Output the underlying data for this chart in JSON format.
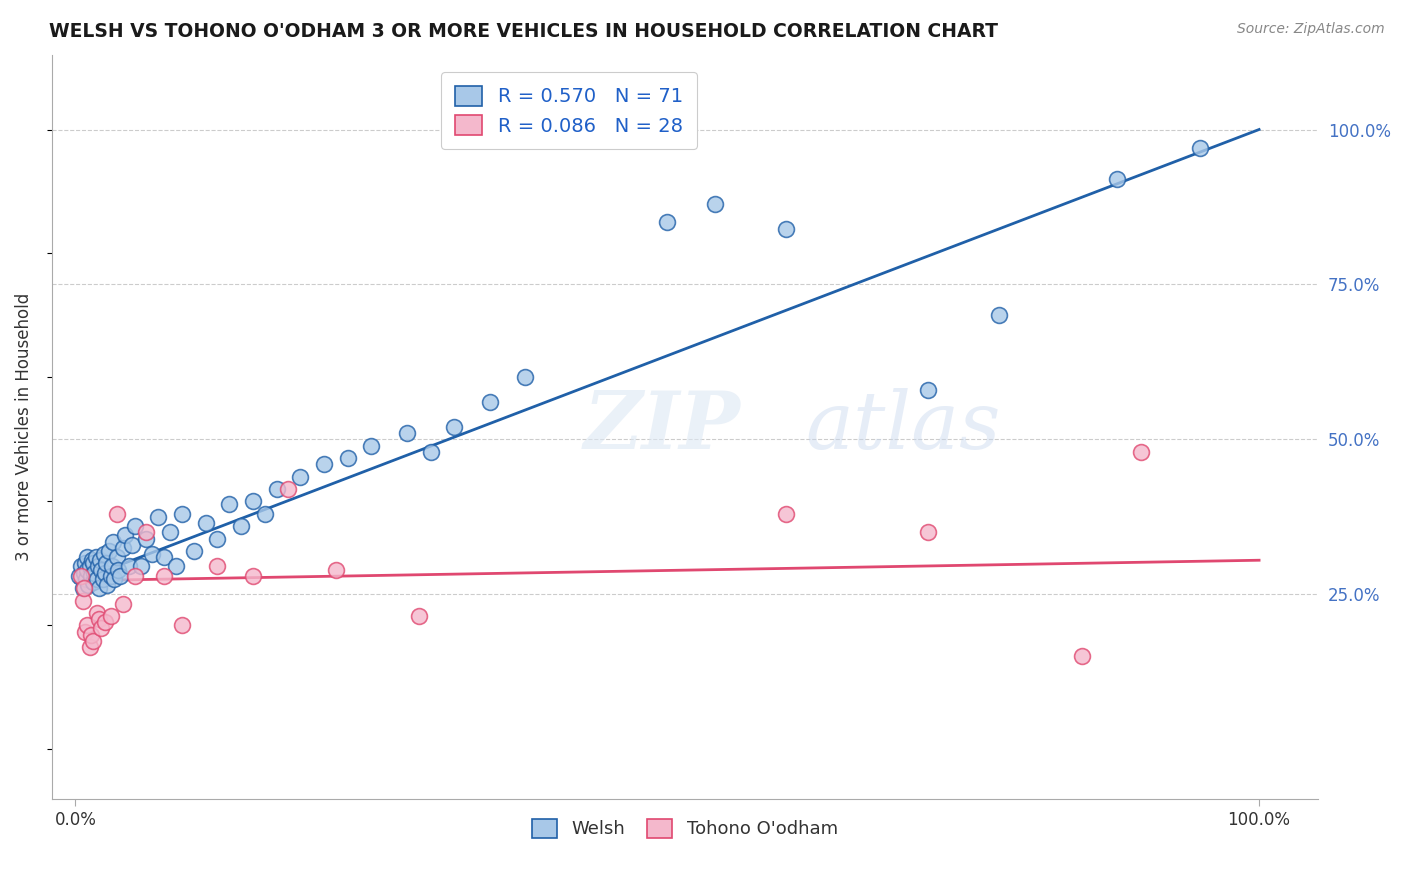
{
  "title": "WELSH VS TOHONO O'ODHAM 3 OR MORE VEHICLES IN HOUSEHOLD CORRELATION CHART",
  "source": "Source: ZipAtlas.com",
  "ylabel": "3 or more Vehicles in Household",
  "welsh_R": 0.57,
  "welsh_N": 71,
  "tohono_R": 0.086,
  "tohono_N": 28,
  "legend_label1": "Welsh",
  "legend_label2": "Tohono O'odham",
  "color_welsh": "#a8c8e8",
  "color_tohono": "#f4b8cc",
  "line_color_welsh": "#2060a8",
  "line_color_tohono": "#e04870",
  "welsh_line_x0": 0.0,
  "welsh_line_y0": 0.27,
  "welsh_line_x1": 1.0,
  "welsh_line_y1": 1.0,
  "tohono_line_x0": 0.0,
  "tohono_line_y0": 0.272,
  "tohono_line_x1": 1.0,
  "tohono_line_y1": 0.305,
  "xlim": [
    -0.02,
    1.05
  ],
  "ylim": [
    -0.08,
    1.12
  ],
  "yticks": [
    0.25,
    0.5,
    0.75,
    1.0
  ],
  "ytick_labels": [
    "25.0%",
    "50.0%",
    "75.0%",
    "100.0%"
  ],
  "welsh_x": [
    0.003,
    0.005,
    0.006,
    0.007,
    0.008,
    0.009,
    0.01,
    0.01,
    0.011,
    0.012,
    0.013,
    0.014,
    0.015,
    0.015,
    0.016,
    0.017,
    0.018,
    0.019,
    0.02,
    0.021,
    0.022,
    0.023,
    0.024,
    0.025,
    0.026,
    0.027,
    0.028,
    0.03,
    0.031,
    0.032,
    0.033,
    0.035,
    0.036,
    0.038,
    0.04,
    0.042,
    0.045,
    0.048,
    0.05,
    0.055,
    0.06,
    0.065,
    0.07,
    0.075,
    0.08,
    0.085,
    0.09,
    0.1,
    0.11,
    0.12,
    0.13,
    0.14,
    0.15,
    0.16,
    0.17,
    0.19,
    0.21,
    0.23,
    0.25,
    0.28,
    0.3,
    0.32,
    0.35,
    0.38,
    0.5,
    0.54,
    0.6,
    0.72,
    0.78,
    0.88,
    0.95
  ],
  "welsh_y": [
    0.28,
    0.295,
    0.26,
    0.285,
    0.3,
    0.275,
    0.29,
    0.31,
    0.265,
    0.295,
    0.28,
    0.305,
    0.27,
    0.3,
    0.285,
    0.31,
    0.275,
    0.295,
    0.26,
    0.305,
    0.29,
    0.275,
    0.315,
    0.285,
    0.3,
    0.265,
    0.32,
    0.28,
    0.295,
    0.335,
    0.275,
    0.31,
    0.29,
    0.28,
    0.325,
    0.345,
    0.295,
    0.33,
    0.36,
    0.295,
    0.34,
    0.315,
    0.375,
    0.31,
    0.35,
    0.295,
    0.38,
    0.32,
    0.365,
    0.34,
    0.395,
    0.36,
    0.4,
    0.38,
    0.42,
    0.44,
    0.46,
    0.47,
    0.49,
    0.51,
    0.48,
    0.52,
    0.56,
    0.6,
    0.85,
    0.88,
    0.84,
    0.58,
    0.7,
    0.92,
    0.97
  ],
  "tohono_x": [
    0.005,
    0.006,
    0.007,
    0.008,
    0.01,
    0.012,
    0.013,
    0.015,
    0.018,
    0.02,
    0.022,
    0.025,
    0.03,
    0.035,
    0.04,
    0.05,
    0.06,
    0.075,
    0.09,
    0.12,
    0.15,
    0.18,
    0.22,
    0.29,
    0.6,
    0.72,
    0.85,
    0.9
  ],
  "tohono_y": [
    0.28,
    0.24,
    0.26,
    0.19,
    0.2,
    0.165,
    0.185,
    0.175,
    0.22,
    0.21,
    0.195,
    0.205,
    0.215,
    0.38,
    0.235,
    0.28,
    0.35,
    0.28,
    0.2,
    0.295,
    0.28,
    0.42,
    0.29,
    0.215,
    0.38,
    0.35,
    0.15,
    0.48
  ]
}
